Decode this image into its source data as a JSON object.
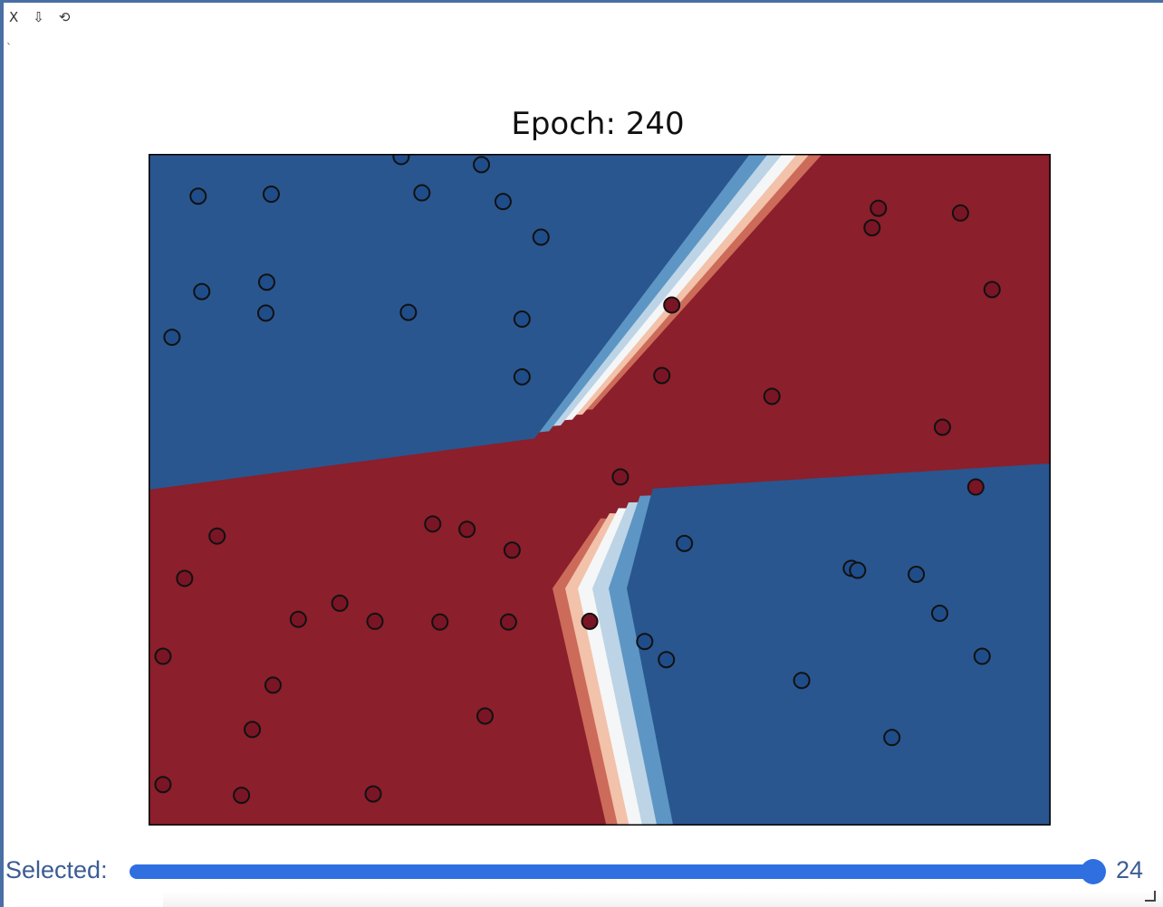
{
  "toolbar": {
    "close_label": "X",
    "download_label": "⇩",
    "reset_label": "⟲"
  },
  "title": "Epoch: 240",
  "slider": {
    "label": "Selected:",
    "value": "24",
    "fraction": 1.0
  },
  "chart_data": {
    "type": "scatter",
    "title": "Epoch: 240",
    "xlabel": "",
    "ylabel": "",
    "xlim": [
      0,
      100
    ],
    "ylim": [
      0,
      100
    ],
    "grid": false,
    "background": "contourf decision boundary (RdBu colormap)",
    "colors": {
      "red_dark": "#8b1f2b",
      "red_mid": "#cc6b5a",
      "red_light": "#f2c2aa",
      "white": "#f5f6f7",
      "blue_light": "#bcd4e6",
      "blue_mid": "#5d96c4",
      "blue_dark": "#29568f"
    },
    "series": [
      {
        "color": "#1f4d8a",
        "x": [
          28.0,
          36.9,
          5.5,
          13.6,
          30.3,
          39.3,
          43.5,
          13.1,
          5.9,
          13.0,
          2.6,
          28.8,
          41.4,
          41.4,
          59.4,
          77.9,
          78.6,
          85.1,
          87.7,
          92.4,
          72.4,
          55.0,
          57.4,
          82.4
        ],
        "y": [
          99.6,
          98.4,
          93.7,
          94.0,
          94.2,
          92.9,
          87.6,
          80.9,
          79.5,
          76.3,
          72.7,
          76.4,
          75.4,
          66.8,
          42.0,
          38.3,
          38.0,
          37.4,
          31.6,
          25.2,
          21.6,
          27.4,
          24.7,
          13.1
        ]
      },
      {
        "color": "#7a1525",
        "x": [
          80.9,
          80.2,
          90.0,
          93.5,
          58.0,
          56.9,
          69.1,
          88.0,
          52.3,
          91.7,
          31.5,
          40.3,
          35.3,
          7.6,
          4.0,
          21.2,
          16.6,
          25.1,
          48.9,
          32.3,
          39.9,
          1.6,
          13.8,
          11.5,
          37.3,
          1.6,
          24.9,
          10.3
        ],
        "y": [
          91.9,
          89.0,
          91.2,
          79.8,
          77.5,
          67.0,
          63.9,
          59.3,
          51.9,
          50.4,
          44.9,
          41.0,
          44.1,
          43.1,
          36.8,
          33.1,
          30.7,
          30.4,
          30.4,
          30.3,
          30.3,
          25.2,
          20.9,
          14.3,
          16.3,
          6.1,
          4.7,
          4.5
        ]
      }
    ]
  }
}
